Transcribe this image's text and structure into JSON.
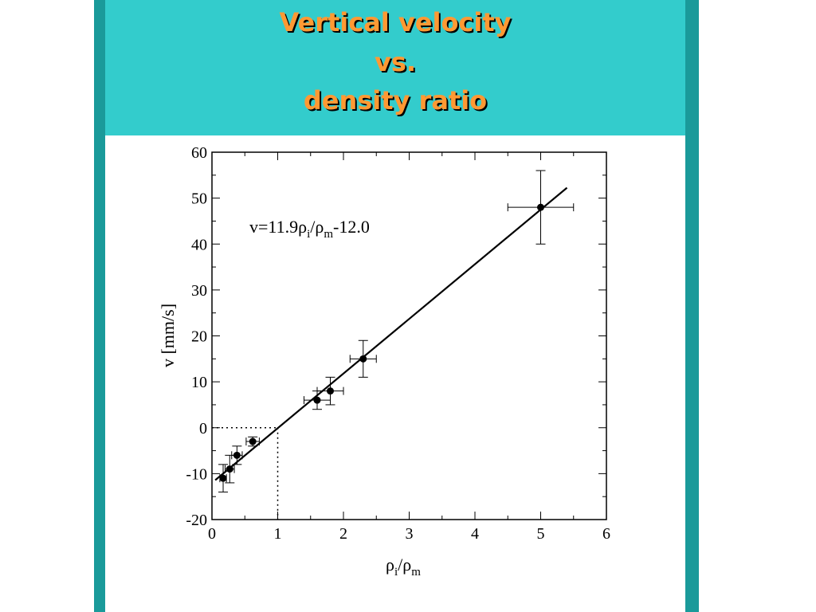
{
  "slide": {
    "title_lines": [
      "Vertical velocity",
      "vs.",
      "density ratio"
    ],
    "colors": {
      "header_bg": "#33cccc",
      "side_bars": "#1a9a9a",
      "title_text": "#ff9933"
    }
  },
  "chart_data": {
    "type": "scatter",
    "x_label_parts": {
      "base": "ρ",
      "sub1": "i",
      "sep": "/ρ",
      "sub2": "m"
    },
    "y_label": "v [mm/s]",
    "equation_parts": {
      "pre": "v=11.9ρ",
      "sub1": "i",
      "mid": "/ρ",
      "sub2": "m",
      "post": "-12.0"
    },
    "xlim": [
      0,
      6
    ],
    "ylim": [
      -20,
      60
    ],
    "x_ticks": [
      0,
      1,
      2,
      3,
      4,
      5,
      6
    ],
    "y_ticks": [
      -20,
      -10,
      0,
      10,
      20,
      30,
      40,
      50,
      60
    ],
    "grid": false,
    "points": [
      {
        "x": 0.17,
        "y": -11,
        "xerr": 0.05,
        "yerr": 3
      },
      {
        "x": 0.27,
        "y": -9,
        "xerr": 0.07,
        "yerr": 3
      },
      {
        "x": 0.38,
        "y": -6,
        "xerr": 0.08,
        "yerr": 2
      },
      {
        "x": 0.62,
        "y": -3,
        "xerr": 0.1,
        "yerr": 1
      },
      {
        "x": 1.6,
        "y": 6,
        "xerr": 0.2,
        "yerr": 2
      },
      {
        "x": 1.8,
        "y": 8,
        "xerr": 0.2,
        "yerr": 3
      },
      {
        "x": 2.3,
        "y": 15,
        "xerr": 0.2,
        "yerr": 4
      },
      {
        "x": 5.0,
        "y": 48,
        "xerr": 0.5,
        "yerr": 8
      }
    ],
    "fit_line": {
      "slope": 11.9,
      "intercept": -12.0,
      "x_range": [
        0.05,
        5.4
      ]
    },
    "reference_lines": {
      "x": 1,
      "y": 0,
      "style": "dotted"
    }
  }
}
